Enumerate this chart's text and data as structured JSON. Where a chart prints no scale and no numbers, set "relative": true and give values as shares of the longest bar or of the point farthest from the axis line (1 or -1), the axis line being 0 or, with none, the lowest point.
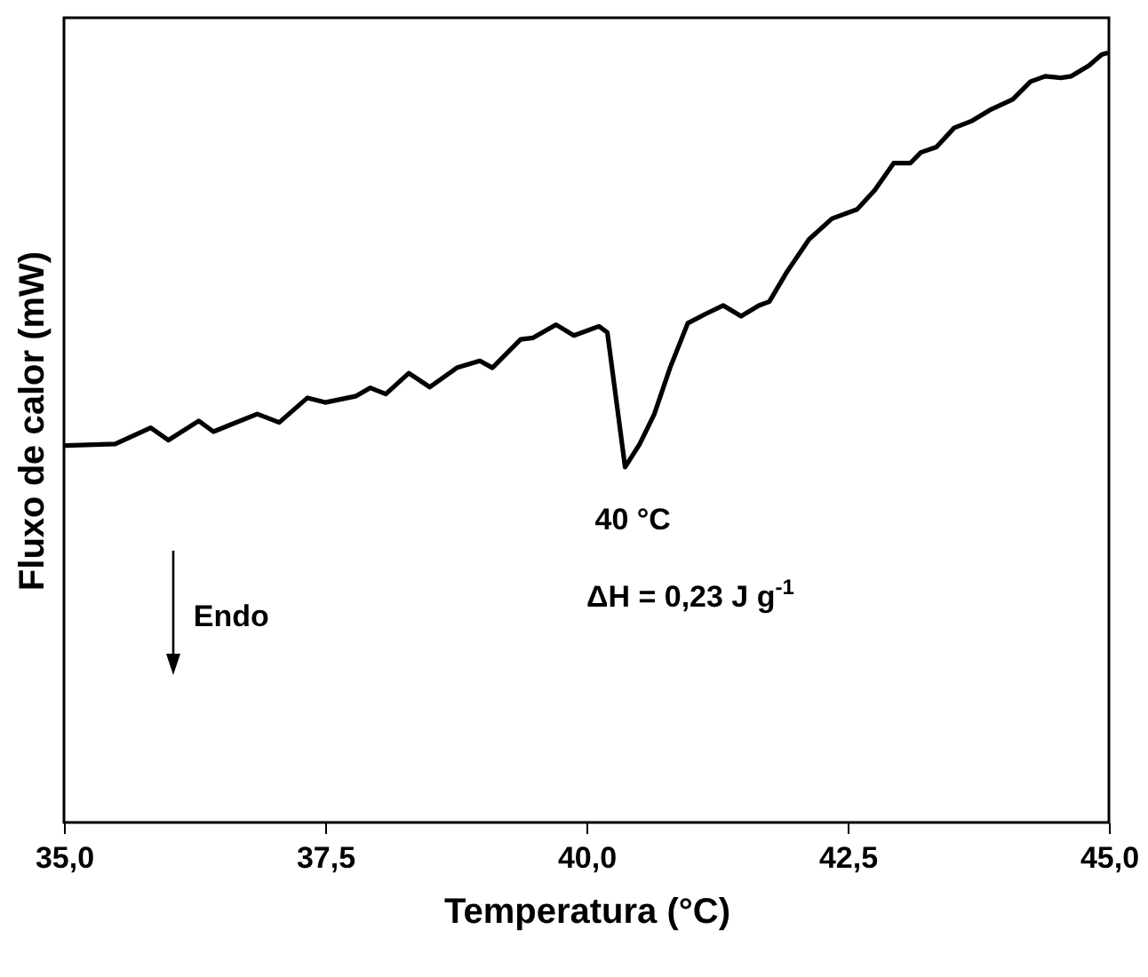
{
  "chart_data": {
    "type": "line",
    "relative": true,
    "xlabel": "Temperatura (°C)",
    "ylabel": "Fluxo de calor (mW)",
    "xlim": [
      35,
      45
    ],
    "xticks": [
      {
        "value": 35,
        "label": "35,0"
      },
      {
        "value": 37.5,
        "label": "37,5"
      },
      {
        "value": 40,
        "label": "40,0"
      },
      {
        "value": 42.5,
        "label": "42,5"
      },
      {
        "value": 45,
        "label": "45,0"
      }
    ],
    "x": [
      35.02,
      35.49,
      35.83,
      36.0,
      36.29,
      36.43,
      36.85,
      37.06,
      37.33,
      37.5,
      37.79,
      37.93,
      38.08,
      38.3,
      38.5,
      38.76,
      38.98,
      39.1,
      39.37,
      39.49,
      39.71,
      39.88,
      40.12,
      40.2,
      40.37,
      40.51,
      40.65,
      40.8,
      40.97,
      41.14,
      41.31,
      41.48,
      41.65,
      41.75,
      41.92,
      42.13,
      42.35,
      42.59,
      42.76,
      42.94,
      43.1,
      43.2,
      43.35,
      43.52,
      43.69,
      43.86,
      44.08,
      44.25,
      44.39,
      44.54,
      44.64,
      44.81,
      44.93,
      44.98
    ],
    "series": [
      {
        "color": "#000000",
        "values": [
          0.49,
          0.492,
          0.513,
          0.497,
          0.522,
          0.508,
          0.531,
          0.52,
          0.552,
          0.546,
          0.554,
          0.565,
          0.557,
          0.584,
          0.566,
          0.591,
          0.6,
          0.591,
          0.628,
          0.63,
          0.647,
          0.633,
          0.645,
          0.637,
          0.462,
          0.492,
          0.531,
          0.591,
          0.649,
          0.661,
          0.672,
          0.658,
          0.672,
          0.677,
          0.716,
          0.758,
          0.785,
          0.797,
          0.822,
          0.857,
          0.857,
          0.871,
          0.878,
          0.903,
          0.912,
          0.926,
          0.94,
          0.963,
          0.97,
          0.968,
          0.97,
          0.984,
          0.998,
          1.0
        ]
      }
    ],
    "annotations": [
      {
        "text": "40 °C",
        "x": 40.37,
        "y": 0.462
      },
      "ΔH = 0,23 J g$^{-1}$",
      "Endo"
    ],
    "grid": false,
    "marker": "none",
    "line_style": "solid"
  }
}
